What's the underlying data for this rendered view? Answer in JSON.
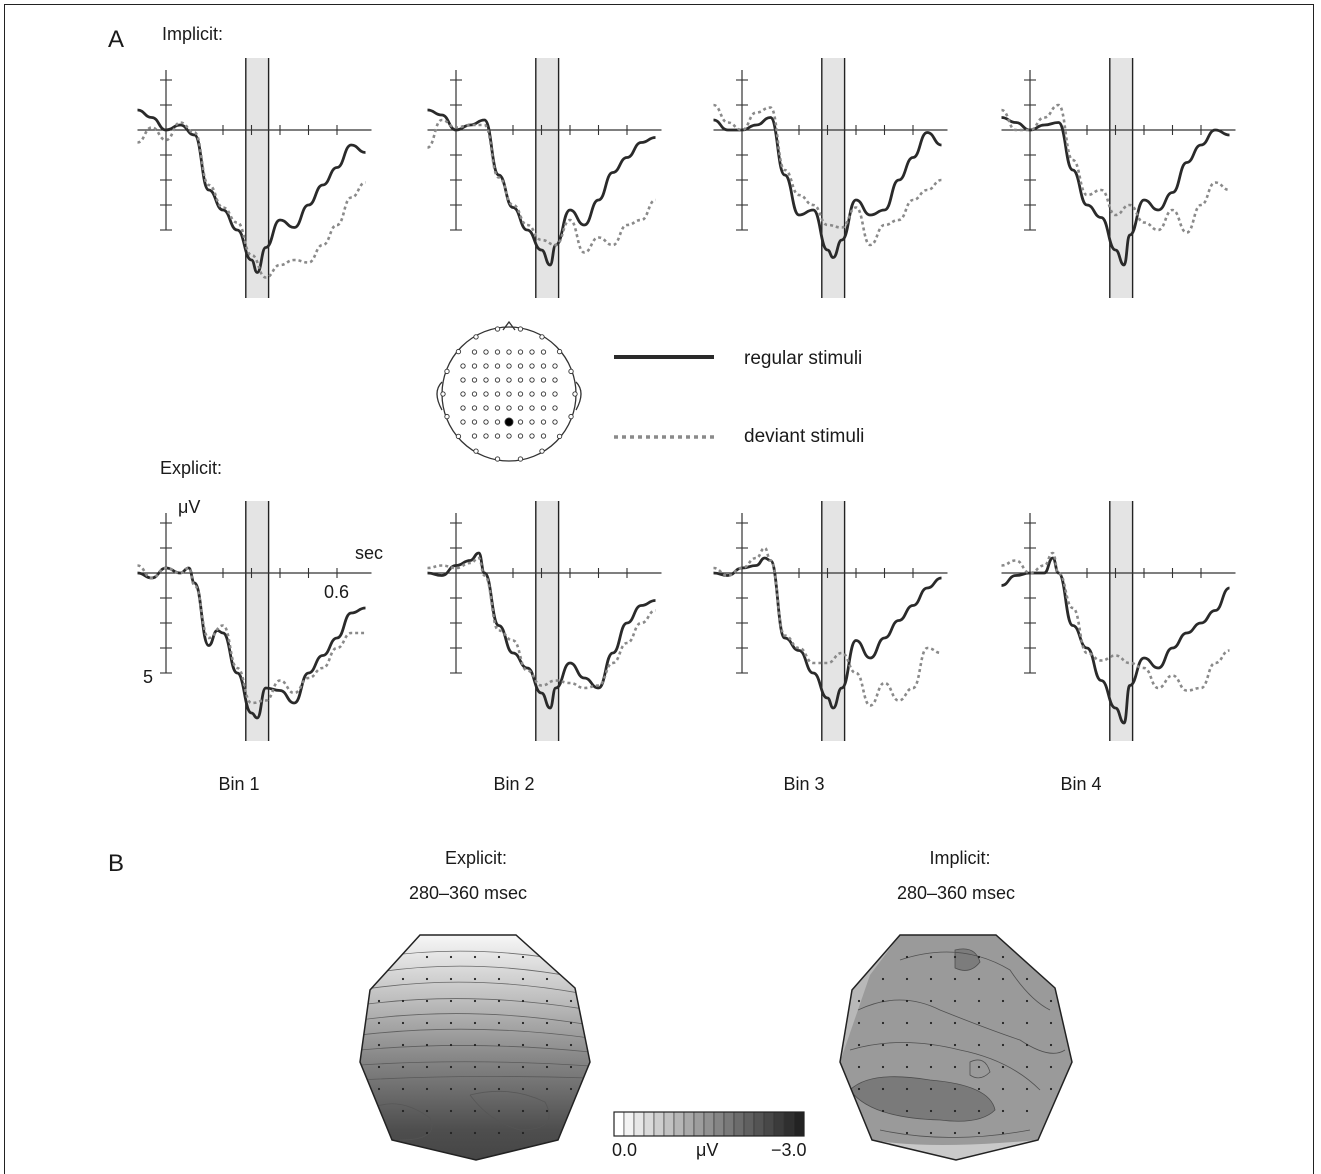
{
  "panel_a": {
    "letter": "A",
    "implicit_label": "Implicit:",
    "explicit_label": "Explicit:",
    "y_unit": "μV",
    "y_tick": "5",
    "x_unit": "sec",
    "x_tick": "0.6",
    "bins": [
      "Bin 1",
      "Bin 2",
      "Bin 3",
      "Bin 4"
    ]
  },
  "legend": {
    "regular": "regular stimuli",
    "deviant": "deviant stimuli"
  },
  "panel_b": {
    "letter": "B",
    "maps": [
      {
        "title": "Explicit:",
        "window": "280–360 msec"
      },
      {
        "title": "Implicit:",
        "window": "280–360 msec"
      }
    ],
    "colorbar": {
      "min": "0.0",
      "unit": "μV",
      "max": "−3.0"
    }
  },
  "colors": {
    "regular": "#2a2a2a",
    "deviant": "#8a8a8a",
    "shade": "#e4e4e4"
  },
  "chart_data": [
    {
      "type": "line",
      "condition": "Implicit",
      "x_unit": "sec",
      "y_unit": "μV",
      "x_range": [
        -0.1,
        0.7
      ],
      "y_range": [
        -2,
        6
      ],
      "negative_up": true,
      "shaded_window_sec": [
        0.28,
        0.36
      ],
      "panels": [
        {
          "bin": "Bin 1",
          "series": [
            {
              "name": "regular stimuli",
              "x": [
                -0.1,
                -0.05,
                0,
                0.05,
                0.1,
                0.15,
                0.2,
                0.25,
                0.3,
                0.32,
                0.35,
                0.4,
                0.45,
                0.5,
                0.55,
                0.6,
                0.65,
                0.7
              ],
              "y": [
                -0.8,
                -0.5,
                0,
                -0.2,
                0.2,
                2.4,
                3.2,
                4.0,
                5.2,
                5.7,
                4.7,
                3.6,
                3.9,
                3.0,
                2.2,
                1.5,
                0.6,
                0.9
              ]
            },
            {
              "name": "deviant stimuli",
              "x": [
                -0.1,
                -0.05,
                0,
                0.05,
                0.1,
                0.15,
                0.2,
                0.25,
                0.3,
                0.35,
                0.4,
                0.45,
                0.5,
                0.55,
                0.6,
                0.65,
                0.7
              ],
              "y": [
                0.5,
                -0.1,
                0.4,
                -0.3,
                0.1,
                2.2,
                3.1,
                3.7,
                5.0,
                5.9,
                5.4,
                5.2,
                5.3,
                4.6,
                3.8,
                2.7,
                2.1
              ]
            }
          ]
        },
        {
          "bin": "Bin 2",
          "series": [
            {
              "name": "regular stimuli",
              "x": [
                -0.1,
                -0.05,
                0,
                0.05,
                0.1,
                0.15,
                0.2,
                0.25,
                0.3,
                0.33,
                0.35,
                0.4,
                0.45,
                0.5,
                0.55,
                0.6,
                0.65,
                0.7
              ],
              "y": [
                -0.8,
                -0.6,
                0,
                -0.2,
                -0.4,
                1.8,
                3.1,
                4.0,
                4.8,
                5.4,
                4.6,
                3.2,
                3.8,
                2.8,
                1.7,
                1.1,
                0.5,
                0.3
              ]
            },
            {
              "name": "deviant stimuli",
              "x": [
                -0.1,
                -0.05,
                0,
                0.05,
                0.1,
                0.15,
                0.2,
                0.25,
                0.3,
                0.35,
                0.4,
                0.45,
                0.5,
                0.55,
                0.6,
                0.65,
                0.7
              ],
              "y": [
                0.7,
                -0.4,
                -0.1,
                -0.2,
                -0.2,
                1.9,
                3.0,
                3.8,
                4.4,
                4.6,
                3.6,
                4.9,
                4.3,
                4.6,
                3.8,
                3.6,
                2.8
              ]
            }
          ]
        },
        {
          "bin": "Bin 3",
          "series": [
            {
              "name": "regular stimuli",
              "x": [
                -0.1,
                -0.05,
                0,
                0.05,
                0.1,
                0.15,
                0.2,
                0.25,
                0.3,
                0.32,
                0.35,
                0.4,
                0.45,
                0.5,
                0.55,
                0.6,
                0.65,
                0.7
              ],
              "y": [
                -0.4,
                0,
                0,
                -0.2,
                -0.5,
                1.8,
                3.4,
                3.2,
                4.8,
                5.1,
                4.4,
                2.8,
                3.4,
                3.2,
                2.0,
                1.1,
                0.1,
                0.6
              ]
            },
            {
              "name": "deviant stimuli",
              "x": [
                -0.1,
                -0.05,
                0,
                0.05,
                0.1,
                0.15,
                0.2,
                0.25,
                0.3,
                0.35,
                0.4,
                0.45,
                0.5,
                0.55,
                0.6,
                0.65,
                0.7
              ],
              "y": [
                -1.0,
                -0.3,
                0,
                -0.7,
                -0.9,
                1.6,
                2.6,
                3.0,
                3.8,
                3.9,
                3.1,
                4.6,
                3.8,
                3.6,
                2.8,
                2.4,
                2.0
              ]
            }
          ]
        },
        {
          "bin": "Bin 4",
          "series": [
            {
              "name": "regular stimuli",
              "x": [
                -0.1,
                -0.05,
                0,
                0.05,
                0.1,
                0.15,
                0.2,
                0.25,
                0.3,
                0.33,
                0.35,
                0.4,
                0.45,
                0.5,
                0.55,
                0.6,
                0.65,
                0.7
              ],
              "y": [
                -0.5,
                -0.3,
                0,
                -0.2,
                -0.3,
                1.6,
                3.0,
                3.5,
                4.8,
                5.4,
                4.2,
                2.8,
                3.2,
                2.5,
                1.3,
                0.6,
                0,
                0.2
              ]
            },
            {
              "name": "deviant stimuli",
              "x": [
                -0.1,
                -0.05,
                0,
                0.05,
                0.1,
                0.15,
                0.2,
                0.25,
                0.3,
                0.35,
                0.4,
                0.45,
                0.5,
                0.55,
                0.6,
                0.65,
                0.7
              ],
              "y": [
                -0.8,
                0,
                0,
                -0.5,
                -1.0,
                1.2,
                2.6,
                2.4,
                3.4,
                3.0,
                3.7,
                4.0,
                3.2,
                4.1,
                3.0,
                2.1,
                2.4
              ]
            }
          ]
        }
      ]
    },
    {
      "type": "line",
      "condition": "Explicit",
      "x_unit": "sec",
      "y_unit": "μV",
      "x_range": [
        -0.1,
        0.7
      ],
      "y_range": [
        -2,
        6
      ],
      "negative_up": true,
      "shaded_window_sec": [
        0.28,
        0.36
      ],
      "panels": [
        {
          "bin": "Bin 1",
          "series": [
            {
              "name": "regular stimuli",
              "x": [
                -0.1,
                -0.05,
                0,
                0.05,
                0.08,
                0.1,
                0.15,
                0.18,
                0.2,
                0.25,
                0.3,
                0.32,
                0.35,
                0.4,
                0.45,
                0.5,
                0.55,
                0.6,
                0.65,
                0.7
              ],
              "y": [
                0,
                0.2,
                -0.2,
                0,
                -0.2,
                0.4,
                2.9,
                2.3,
                2.4,
                4.0,
                5.6,
                5.8,
                4.6,
                4.7,
                5.2,
                4.0,
                3.3,
                2.6,
                1.6,
                1.4
              ]
            },
            {
              "name": "deviant stimuli",
              "x": [
                -0.1,
                -0.05,
                0,
                0.05,
                0.08,
                0.1,
                0.15,
                0.2,
                0.25,
                0.3,
                0.35,
                0.4,
                0.45,
                0.5,
                0.55,
                0.6,
                0.65,
                0.7
              ],
              "y": [
                -0.3,
                0.2,
                -0.2,
                0,
                -0.2,
                0.5,
                2.6,
                2.1,
                3.8,
                5.2,
                5.1,
                4.3,
                4.8,
                4.2,
                3.8,
                3.0,
                2.4,
                2.4
              ]
            }
          ]
        },
        {
          "bin": "Bin 2",
          "series": [
            {
              "name": "regular stimuli",
              "x": [
                -0.1,
                -0.05,
                0,
                0.05,
                0.08,
                0.1,
                0.15,
                0.2,
                0.25,
                0.3,
                0.33,
                0.35,
                0.4,
                0.45,
                0.5,
                0.55,
                0.6,
                0.65,
                0.7
              ],
              "y": [
                0,
                0.1,
                -0.3,
                -0.5,
                -0.8,
                0,
                2.1,
                3.2,
                3.8,
                4.8,
                5.4,
                4.6,
                3.6,
                4.2,
                4.6,
                3.2,
                2.0,
                1.3,
                1.1
              ]
            },
            {
              "name": "deviant stimuli",
              "x": [
                -0.1,
                -0.05,
                0,
                0.05,
                0.08,
                0.1,
                0.15,
                0.2,
                0.25,
                0.3,
                0.35,
                0.4,
                0.45,
                0.5,
                0.55,
                0.6,
                0.65,
                0.7
              ],
              "y": [
                -0.2,
                -0.3,
                -0.2,
                -0.4,
                -0.6,
                0.1,
                2.3,
                2.7,
                3.9,
                4.5,
                4.3,
                4.4,
                4.6,
                4.5,
                3.6,
                2.8,
                2.0,
                1.5
              ]
            }
          ]
        },
        {
          "bin": "Bin 3",
          "series": [
            {
              "name": "regular stimuli",
              "x": [
                -0.1,
                -0.05,
                0,
                0.05,
                0.08,
                0.1,
                0.15,
                0.2,
                0.25,
                0.3,
                0.32,
                0.35,
                0.4,
                0.45,
                0.5,
                0.55,
                0.6,
                0.65,
                0.7
              ],
              "y": [
                0,
                0.1,
                -0.2,
                -0.3,
                -0.6,
                -0.5,
                2.6,
                3.1,
                4.0,
                5.0,
                5.4,
                4.6,
                2.7,
                3.4,
                2.6,
                1.9,
                1.3,
                0.6,
                0.2
              ]
            },
            {
              "name": "deviant stimuli",
              "x": [
                -0.1,
                -0.05,
                0,
                0.05,
                0.08,
                0.1,
                0.15,
                0.2,
                0.25,
                0.3,
                0.35,
                0.4,
                0.45,
                0.5,
                0.55,
                0.6,
                0.65,
                0.7
              ],
              "y": [
                -0.2,
                0.1,
                -0.2,
                -0.6,
                -1.0,
                -0.5,
                2.5,
                3.0,
                3.6,
                3.6,
                3.2,
                4.0,
                5.3,
                4.4,
                5.1,
                4.6,
                3.0,
                3.2
              ]
            }
          ]
        },
        {
          "bin": "Bin 4",
          "series": [
            {
              "name": "regular stimuli",
              "x": [
                -0.1,
                -0.05,
                0,
                0.05,
                0.08,
                0.1,
                0.15,
                0.2,
                0.25,
                0.3,
                0.33,
                0.35,
                0.4,
                0.45,
                0.5,
                0.55,
                0.6,
                0.65,
                0.7
              ],
              "y": [
                0.5,
                0.1,
                0,
                0,
                -0.6,
                0,
                2.1,
                3.0,
                4.3,
                5.4,
                6.0,
                4.5,
                3.4,
                3.8,
                3.0,
                2.4,
                2.0,
                1.5,
                0.6
              ]
            },
            {
              "name": "deviant stimuli",
              "x": [
                -0.1,
                -0.05,
                0,
                0.05,
                0.08,
                0.1,
                0.15,
                0.2,
                0.25,
                0.3,
                0.35,
                0.4,
                0.45,
                0.5,
                0.55,
                0.6,
                0.65,
                0.7
              ],
              "y": [
                -0.3,
                -0.5,
                0,
                -0.3,
                -0.8,
                0,
                1.4,
                3.2,
                3.5,
                3.3,
                3.6,
                3.8,
                4.6,
                4.1,
                4.7,
                4.6,
                3.6,
                3.1
              ]
            }
          ]
        }
      ]
    }
  ]
}
